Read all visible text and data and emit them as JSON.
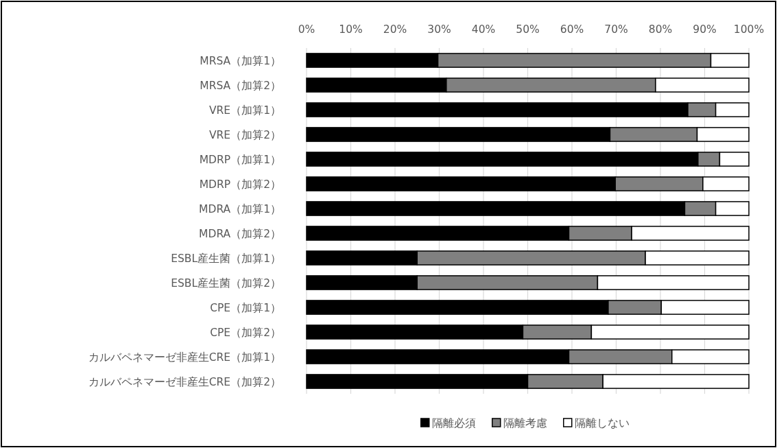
{
  "chart_data": {
    "type": "bar",
    "orientation": "horizontal",
    "stacked": true,
    "grid": "x",
    "legend": "bottom",
    "categories": [
      "MRSA（加算1）",
      "MRSA（加算2）",
      "VRE（加算1）",
      "VRE（加算2）",
      "MDRP（加算1）",
      "MDRP（加算2）",
      "MDRA（加算1）",
      "MDRA（加算2）",
      "ESBL産生菌（加算1）",
      "ESBL産生菌（加算2）",
      "CPE（加算1）",
      "CPE（加算2）",
      "カルバペネマーゼ非産生CRE（加算1）",
      "カルバペネマーゼ非産生CRE（加算2）"
    ],
    "xlim": [
      0,
      100
    ],
    "xticks": [
      {
        "value": 0,
        "label": "0%"
      },
      {
        "value": 10,
        "label": "10%"
      },
      {
        "value": 20,
        "label": "20%"
      },
      {
        "value": 30,
        "label": "30%"
      },
      {
        "value": 40,
        "label": "40%"
      },
      {
        "value": 50,
        "label": "50%"
      },
      {
        "value": 60,
        "label": "60%"
      },
      {
        "value": 70,
        "label": "70%"
      },
      {
        "value": 80,
        "label": "80%"
      },
      {
        "value": 90,
        "label": "90%"
      },
      {
        "value": 100,
        "label": "100%"
      }
    ],
    "series": [
      {
        "name": "隔離必須",
        "color": "#000000",
        "values": [
          29.7,
          31.6,
          86.2,
          68.6,
          88.5,
          69.8,
          85.5,
          59.3,
          25.0,
          25.0,
          68.2,
          48.9,
          59.3,
          50.0
        ]
      },
      {
        "name": "隔離考慮",
        "color": "#808080",
        "values": [
          61.7,
          47.3,
          6.3,
          19.7,
          4.9,
          19.8,
          7.0,
          14.2,
          51.6,
          40.8,
          12.0,
          15.5,
          23.3,
          17.0
        ]
      },
      {
        "name": "隔離しない",
        "color": "#ffffff",
        "values": [
          8.6,
          21.1,
          7.5,
          11.7,
          6.6,
          10.4,
          7.5,
          26.5,
          23.4,
          34.2,
          19.8,
          35.6,
          17.4,
          33.0
        ]
      }
    ]
  }
}
